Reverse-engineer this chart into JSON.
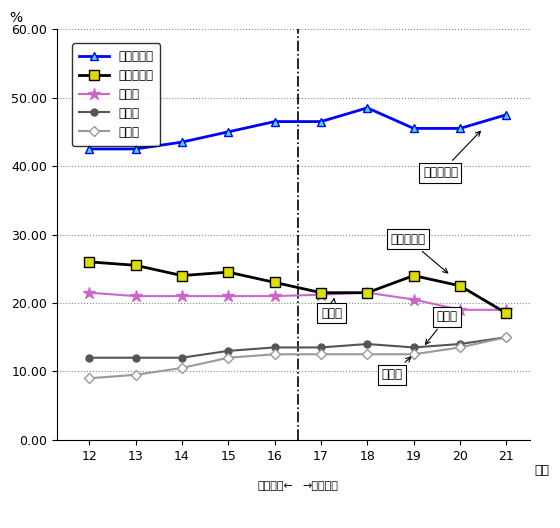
{
  "years": [
    12,
    13,
    14,
    15,
    16,
    17,
    18,
    19,
    20,
    21
  ],
  "gimu": [
    42.5,
    42.5,
    43.5,
    45.0,
    46.5,
    46.5,
    48.5,
    45.5,
    45.5,
    47.5
  ],
  "toshi": [
    26.0,
    25.5,
    24.0,
    24.5,
    23.0,
    21.5,
    21.5,
    24.0,
    22.5,
    18.5
  ],
  "jinken": [
    21.5,
    21.0,
    21.0,
    21.0,
    21.0,
    21.2,
    21.5,
    20.5,
    19.0,
    19.0
  ],
  "kosha": [
    12.0,
    12.0,
    12.0,
    13.0,
    13.5,
    13.5,
    14.0,
    13.5,
    14.0,
    15.0
  ],
  "fujo": [
    9.0,
    9.5,
    10.5,
    12.0,
    12.5,
    12.5,
    12.5,
    12.5,
    13.5,
    15.0
  ],
  "vline_x": 16.5,
  "ylim": [
    0.0,
    60.0
  ],
  "yticks": [
    0.0,
    10.0,
    20.0,
    30.0,
    40.0,
    50.0,
    60.0
  ],
  "ylabel": "%",
  "xlabel": "年度",
  "color_gimu": "#0000FF",
  "color_toshi": "#000000",
  "color_jinken": "#CC66CC",
  "color_kosha": "#555555",
  "color_fujo": "#999999",
  "label_gimu": "義務的経費",
  "label_toshi": "投資的経費",
  "label_jinken": "人件費",
  "label_kosha": "公債費",
  "label_fujo": "扶助費",
  "ann_gimu": "義務的経費",
  "ann_toshi": "投資的経費",
  "ann_jinken": "人件費",
  "ann_kosha": "公債費",
  "ann_fujo": "扶助費",
  "bottom_left": "旧浜松市←",
  "bottom_right": "→新浜松市"
}
